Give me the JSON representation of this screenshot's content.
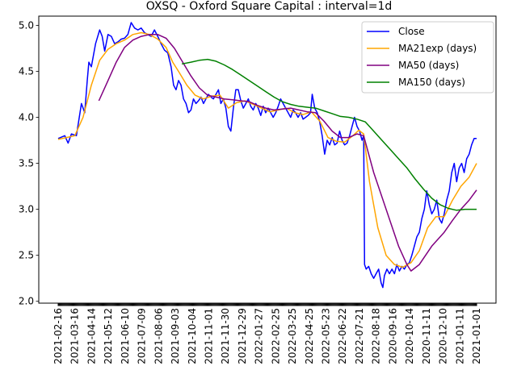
{
  "chart_data": {
    "type": "line",
    "title": "OXSQ - Oxford Square Capital : interval=1d",
    "xlabel": "",
    "ylabel": "",
    "ylim": [
      1.98,
      5.1
    ],
    "yticks": [
      2.0,
      2.5,
      3.0,
      3.5,
      4.0,
      4.5,
      5.0
    ],
    "ytick_labels": [
      "2.0",
      "2.5",
      "3.0",
      "3.5",
      "4.0",
      "4.5",
      "5.0"
    ],
    "x_tick_labels": [
      "2021-02-16",
      "2021-03-16",
      "2021-04-14",
      "2021-05-12",
      "2021-06-10",
      "2021-07-09",
      "2021-08-06",
      "2021-09-03",
      "2021-10-04",
      "2021-11-01",
      "2021-11-30",
      "2021-12-29",
      "2022-01-27",
      "2022-02-25",
      "2022-03-25",
      "2022-04-25",
      "2022-05-23",
      "2022-06-22",
      "2022-07-21",
      "2022-08-18",
      "2020-09-16",
      "2020-10-14",
      "2020-11-11",
      "2020-12-10",
      "2021-01-11",
      "2021-01-01"
    ],
    "x_count": 505,
    "grid": false,
    "legend_position": "upper right",
    "series": [
      {
        "name": "Close",
        "color": "#0000ff",
        "points": [
          [
            0,
            3.77
          ],
          [
            8,
            3.8
          ],
          [
            12,
            3.72
          ],
          [
            16,
            3.82
          ],
          [
            22,
            3.8
          ],
          [
            28,
            4.15
          ],
          [
            32,
            4.05
          ],
          [
            35,
            4.4
          ],
          [
            37,
            4.6
          ],
          [
            40,
            4.55
          ],
          [
            45,
            4.8
          ],
          [
            50,
            4.95
          ],
          [
            53,
            4.88
          ],
          [
            56,
            4.72
          ],
          [
            60,
            4.9
          ],
          [
            64,
            4.88
          ],
          [
            68,
            4.8
          ],
          [
            72,
            4.82
          ],
          [
            76,
            4.85
          ],
          [
            80,
            4.86
          ],
          [
            84,
            4.9
          ],
          [
            88,
            5.03
          ],
          [
            92,
            4.97
          ],
          [
            96,
            4.95
          ],
          [
            100,
            4.97
          ],
          [
            104,
            4.92
          ],
          [
            108,
            4.9
          ],
          [
            112,
            4.88
          ],
          [
            116,
            4.95
          ],
          [
            120,
            4.88
          ],
          [
            124,
            4.8
          ],
          [
            128,
            4.73
          ],
          [
            132,
            4.7
          ],
          [
            136,
            4.55
          ],
          [
            139,
            4.35
          ],
          [
            142,
            4.3
          ],
          [
            145,
            4.4
          ],
          [
            148,
            4.35
          ],
          [
            151,
            4.2
          ],
          [
            154,
            4.15
          ],
          [
            157,
            4.05
          ],
          [
            160,
            4.08
          ],
          [
            163,
            4.2
          ],
          [
            166,
            4.15
          ],
          [
            169,
            4.18
          ],
          [
            172,
            4.22
          ],
          [
            175,
            4.15
          ],
          [
            178,
            4.2
          ],
          [
            181,
            4.25
          ],
          [
            184,
            4.22
          ],
          [
            187,
            4.2
          ],
          [
            190,
            4.25
          ],
          [
            193,
            4.3
          ],
          [
            196,
            4.15
          ],
          [
            199,
            4.2
          ],
          [
            202,
            4.1
          ],
          [
            205,
            3.9
          ],
          [
            208,
            3.85
          ],
          [
            211,
            4.1
          ],
          [
            214,
            4.3
          ],
          [
            217,
            4.3
          ],
          [
            220,
            4.18
          ],
          [
            223,
            4.1
          ],
          [
            226,
            4.15
          ],
          [
            229,
            4.2
          ],
          [
            232,
            4.12
          ],
          [
            235,
            4.08
          ],
          [
            238,
            4.15
          ],
          [
            241,
            4.1
          ],
          [
            244,
            4.02
          ],
          [
            247,
            4.12
          ],
          [
            250,
            4.05
          ],
          [
            253,
            4.1
          ],
          [
            256,
            4.05
          ],
          [
            259,
            4.0
          ],
          [
            262,
            4.05
          ],
          [
            265,
            4.12
          ],
          [
            268,
            4.2
          ],
          [
            271,
            4.15
          ],
          [
            274,
            4.1
          ],
          [
            277,
            4.05
          ],
          [
            280,
            4.0
          ],
          [
            283,
            4.08
          ],
          [
            286,
            4.05
          ],
          [
            289,
            4.0
          ],
          [
            292,
            4.05
          ],
          [
            295,
            3.98
          ],
          [
            298,
            4.0
          ],
          [
            301,
            4.02
          ],
          [
            304,
            4.05
          ],
          [
            306,
            4.25
          ],
          [
            309,
            4.1
          ],
          [
            312,
            4.05
          ],
          [
            315,
            3.95
          ],
          [
            318,
            3.8
          ],
          [
            321,
            3.6
          ],
          [
            324,
            3.75
          ],
          [
            327,
            3.7
          ],
          [
            330,
            3.78
          ],
          [
            333,
            3.7
          ],
          [
            336,
            3.72
          ],
          [
            339,
            3.85
          ],
          [
            342,
            3.75
          ],
          [
            345,
            3.7
          ],
          [
            348,
            3.72
          ],
          [
            351,
            3.8
          ],
          [
            354,
            3.9
          ],
          [
            357,
            4.0
          ],
          [
            360,
            3.9
          ],
          [
            363,
            3.85
          ],
          [
            366,
            3.75
          ],
          [
            368,
            3.8
          ],
          [
            369,
            2.4
          ],
          [
            371,
            2.35
          ],
          [
            374,
            2.38
          ],
          [
            377,
            2.3
          ],
          [
            380,
            2.25
          ],
          [
            383,
            2.3
          ],
          [
            386,
            2.35
          ],
          [
            389,
            2.2
          ],
          [
            391,
            2.15
          ],
          [
            393,
            2.28
          ],
          [
            396,
            2.35
          ],
          [
            399,
            2.3
          ],
          [
            402,
            2.35
          ],
          [
            405,
            2.3
          ],
          [
            408,
            2.4
          ],
          [
            411,
            2.33
          ],
          [
            414,
            2.38
          ],
          [
            417,
            2.35
          ],
          [
            420,
            2.4
          ],
          [
            423,
            2.42
          ],
          [
            426,
            2.5
          ],
          [
            429,
            2.6
          ],
          [
            432,
            2.7
          ],
          [
            435,
            2.75
          ],
          [
            438,
            2.9
          ],
          [
            441,
            3.0
          ],
          [
            444,
            3.2
          ],
          [
            447,
            3.05
          ],
          [
            450,
            2.95
          ],
          [
            453,
            3.0
          ],
          [
            456,
            3.1
          ],
          [
            459,
            2.9
          ],
          [
            462,
            2.85
          ],
          [
            465,
            2.95
          ],
          [
            468,
            3.1
          ],
          [
            471,
            3.2
          ],
          [
            474,
            3.4
          ],
          [
            477,
            3.5
          ],
          [
            480,
            3.3
          ],
          [
            483,
            3.45
          ],
          [
            486,
            3.5
          ],
          [
            489,
            3.4
          ],
          [
            492,
            3.55
          ],
          [
            495,
            3.6
          ],
          [
            498,
            3.7
          ],
          [
            501,
            3.77
          ],
          [
            504,
            3.77
          ]
        ]
      },
      {
        "name": "MA21exp (days)",
        "color": "#ffa500",
        "points": [
          [
            0,
            3.76
          ],
          [
            10,
            3.78
          ],
          [
            20,
            3.8
          ],
          [
            30,
            4.0
          ],
          [
            40,
            4.35
          ],
          [
            50,
            4.62
          ],
          [
            60,
            4.74
          ],
          [
            70,
            4.8
          ],
          [
            80,
            4.84
          ],
          [
            90,
            4.9
          ],
          [
            100,
            4.92
          ],
          [
            110,
            4.9
          ],
          [
            120,
            4.85
          ],
          [
            130,
            4.76
          ],
          [
            138,
            4.6
          ],
          [
            145,
            4.5
          ],
          [
            155,
            4.35
          ],
          [
            165,
            4.24
          ],
          [
            175,
            4.2
          ],
          [
            185,
            4.23
          ],
          [
            195,
            4.24
          ],
          [
            205,
            4.1
          ],
          [
            215,
            4.16
          ],
          [
            225,
            4.18
          ],
          [
            235,
            4.14
          ],
          [
            245,
            4.1
          ],
          [
            255,
            4.06
          ],
          [
            265,
            4.08
          ],
          [
            275,
            4.1
          ],
          [
            285,
            4.05
          ],
          [
            295,
            4.03
          ],
          [
            305,
            4.06
          ],
          [
            315,
            3.96
          ],
          [
            325,
            3.78
          ],
          [
            335,
            3.74
          ],
          [
            345,
            3.73
          ],
          [
            355,
            3.8
          ],
          [
            362,
            3.86
          ],
          [
            368,
            3.82
          ],
          [
            375,
            3.3
          ],
          [
            385,
            2.8
          ],
          [
            395,
            2.5
          ],
          [
            405,
            2.4
          ],
          [
            415,
            2.37
          ],
          [
            425,
            2.42
          ],
          [
            435,
            2.55
          ],
          [
            445,
            2.8
          ],
          [
            455,
            2.92
          ],
          [
            465,
            2.92
          ],
          [
            475,
            3.1
          ],
          [
            485,
            3.25
          ],
          [
            495,
            3.35
          ],
          [
            504,
            3.5
          ]
        ]
      },
      {
        "name": "MA50 (days)",
        "color": "#800080",
        "points": [
          [
            49,
            4.18
          ],
          [
            60,
            4.4
          ],
          [
            70,
            4.6
          ],
          [
            80,
            4.76
          ],
          [
            90,
            4.84
          ],
          [
            100,
            4.88
          ],
          [
            110,
            4.9
          ],
          [
            120,
            4.9
          ],
          [
            130,
            4.86
          ],
          [
            140,
            4.75
          ],
          [
            150,
            4.6
          ],
          [
            160,
            4.45
          ],
          [
            170,
            4.32
          ],
          [
            180,
            4.24
          ],
          [
            190,
            4.22
          ],
          [
            200,
            4.2
          ],
          [
            210,
            4.19
          ],
          [
            220,
            4.18
          ],
          [
            230,
            4.17
          ],
          [
            240,
            4.13
          ],
          [
            250,
            4.1
          ],
          [
            260,
            4.08
          ],
          [
            270,
            4.09
          ],
          [
            280,
            4.1
          ],
          [
            290,
            4.08
          ],
          [
            300,
            4.06
          ],
          [
            310,
            4.05
          ],
          [
            320,
            3.96
          ],
          [
            330,
            3.85
          ],
          [
            340,
            3.78
          ],
          [
            350,
            3.78
          ],
          [
            360,
            3.82
          ],
          [
            368,
            3.8
          ],
          [
            380,
            3.4
          ],
          [
            395,
            3.0
          ],
          [
            410,
            2.6
          ],
          [
            420,
            2.4
          ],
          [
            425,
            2.33
          ],
          [
            435,
            2.4
          ],
          [
            450,
            2.6
          ],
          [
            465,
            2.75
          ],
          [
            475,
            2.88
          ],
          [
            485,
            3.0
          ],
          [
            495,
            3.1
          ],
          [
            504,
            3.21
          ]
        ]
      },
      {
        "name": "MA150 (days)",
        "color": "#008000",
        "points": [
          [
            149,
            4.58
          ],
          [
            160,
            4.6
          ],
          [
            170,
            4.62
          ],
          [
            180,
            4.63
          ],
          [
            190,
            4.61
          ],
          [
            200,
            4.57
          ],
          [
            210,
            4.52
          ],
          [
            220,
            4.46
          ],
          [
            230,
            4.4
          ],
          [
            240,
            4.34
          ],
          [
            250,
            4.28
          ],
          [
            260,
            4.22
          ],
          [
            270,
            4.17
          ],
          [
            280,
            4.14
          ],
          [
            290,
            4.12
          ],
          [
            300,
            4.11
          ],
          [
            310,
            4.1
          ],
          [
            320,
            4.07
          ],
          [
            330,
            4.04
          ],
          [
            340,
            4.01
          ],
          [
            350,
            4.0
          ],
          [
            360,
            3.98
          ],
          [
            370,
            3.95
          ],
          [
            380,
            3.85
          ],
          [
            390,
            3.75
          ],
          [
            400,
            3.65
          ],
          [
            410,
            3.55
          ],
          [
            420,
            3.45
          ],
          [
            430,
            3.33
          ],
          [
            440,
            3.22
          ],
          [
            450,
            3.12
          ],
          [
            460,
            3.05
          ],
          [
            470,
            3.01
          ],
          [
            480,
            2.99
          ],
          [
            490,
            3.0
          ],
          [
            504,
            3.0
          ]
        ]
      }
    ]
  }
}
